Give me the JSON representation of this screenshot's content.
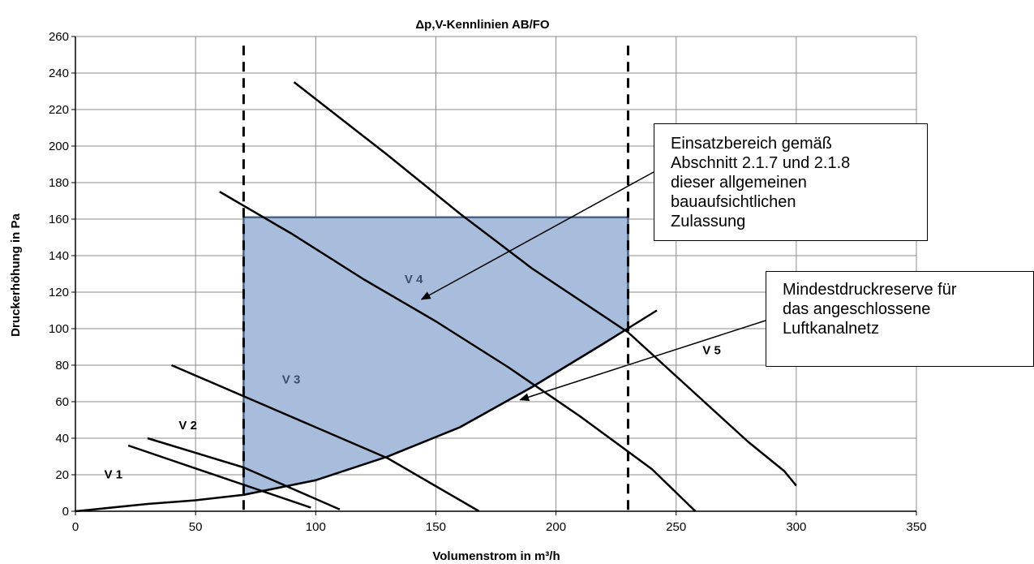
{
  "chart_data": {
    "type": "line",
    "title": "Δp,V-Kennlinien AB/FO",
    "xlabel": "Volumenstrom in m³/h",
    "ylabel": "Druckerhöhung in Pa",
    "xlim": [
      0,
      350
    ],
    "ylim": [
      0,
      260
    ],
    "x_ticks": [
      0,
      50,
      100,
      150,
      200,
      250,
      300,
      350
    ],
    "y_ticks": [
      0,
      20,
      40,
      60,
      80,
      100,
      120,
      140,
      160,
      180,
      200,
      220,
      240,
      260
    ],
    "grid": true,
    "legend": "none",
    "series": [
      {
        "name": "V 1",
        "x": [
          22,
          98
        ],
        "y": [
          36,
          2
        ]
      },
      {
        "name": "V 2",
        "x": [
          30,
          70,
          110
        ],
        "y": [
          40,
          24,
          1
        ]
      },
      {
        "name": "V 3",
        "x": [
          40,
          70,
          100,
          130,
          168
        ],
        "y": [
          80,
          63,
          46,
          29,
          0
        ]
      },
      {
        "name": "V 4",
        "x": [
          60,
          90,
          120,
          150,
          180,
          210,
          240,
          258
        ],
        "y": [
          175,
          152,
          127,
          104,
          79,
          52,
          23,
          0
        ]
      },
      {
        "name": "V 5",
        "x": [
          91,
          130,
          160,
          190,
          230,
          260,
          280,
          295,
          300
        ],
        "y": [
          235,
          195,
          163,
          133,
          98,
          62,
          38,
          22,
          14
        ]
      },
      {
        "name": "Mindestdruckreserve",
        "x": [
          0,
          30,
          50,
          70,
          100,
          130,
          160,
          190,
          220,
          242
        ],
        "y": [
          0,
          4,
          6,
          9,
          17,
          30,
          46,
          68,
          92,
          110
        ]
      }
    ],
    "einsatzbereich": {
      "x_range": [
        70,
        230
      ],
      "upper_y": 161,
      "fill": "#a8bcdc",
      "edge": "#4a6488"
    },
    "dashed_verticals_x": [
      70,
      230
    ],
    "labels": [
      {
        "text": "V 1",
        "x": 12,
        "y": 18,
        "color": "#000000"
      },
      {
        "text": "V 2",
        "x": 43,
        "y": 45,
        "color": "#000000"
      },
      {
        "text": "V 3",
        "x": 86,
        "y": 70,
        "color": "#3a4f6e"
      },
      {
        "text": "V 4",
        "x": 137,
        "y": 125,
        "color": "#3a4f6e"
      },
      {
        "text": "V 5",
        "x": 261,
        "y": 86,
        "color": "#000000"
      }
    ],
    "annotations": [
      {
        "id": "einsatz",
        "text": "Einsatzbereich gemäß\nAbschnitt 2.1.7 und 2.1.8\ndieser allgemeinen\nbauaufsichtlichen\nZulassung",
        "arrow_to": [
          144,
          116
        ]
      },
      {
        "id": "mindest",
        "text": "Mindestdruckreserve für\ndas angeschlossene\nLuftkanalnetz",
        "arrow_to": [
          185,
          61
        ]
      }
    ]
  }
}
